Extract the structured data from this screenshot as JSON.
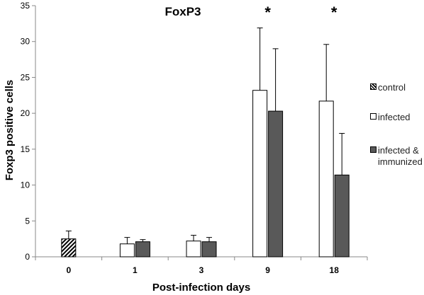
{
  "chart_data": {
    "type": "bar",
    "title": "FoxP3",
    "xlabel": "Post-infection days",
    "ylabel": "Foxp3 positive cells",
    "ylim": [
      0,
      35
    ],
    "yticks": [
      0,
      5,
      10,
      15,
      20,
      25,
      30,
      35
    ],
    "categories": [
      "0",
      "1",
      "3",
      "9",
      "18"
    ],
    "series": [
      {
        "name": "control",
        "values": [
          2.5,
          null,
          null,
          null,
          null
        ],
        "errors": [
          1.1,
          null,
          null,
          null,
          null
        ],
        "fill": "hatched"
      },
      {
        "name": "infected",
        "values": [
          null,
          1.8,
          2.2,
          23.2,
          21.7
        ],
        "errors": [
          null,
          0.9,
          0.8,
          8.7,
          7.9
        ],
        "color": "#ffffff"
      },
      {
        "name": "infected & immunized",
        "values": [
          null,
          2.1,
          2.1,
          20.3,
          11.4
        ],
        "errors": [
          null,
          0.3,
          0.6,
          8.7,
          5.8
        ],
        "color": "#595959"
      }
    ],
    "annotations": [
      {
        "category": "9",
        "text": "*"
      },
      {
        "category": "18",
        "text": "*"
      }
    ],
    "legend": {
      "position": "right",
      "items": [
        {
          "label": "control",
          "fill": "hatched"
        },
        {
          "label": "infected",
          "fill": "#ffffff"
        },
        {
          "label": "infected &\nimmunized",
          "fill": "#595959"
        }
      ]
    },
    "grid": false
  }
}
